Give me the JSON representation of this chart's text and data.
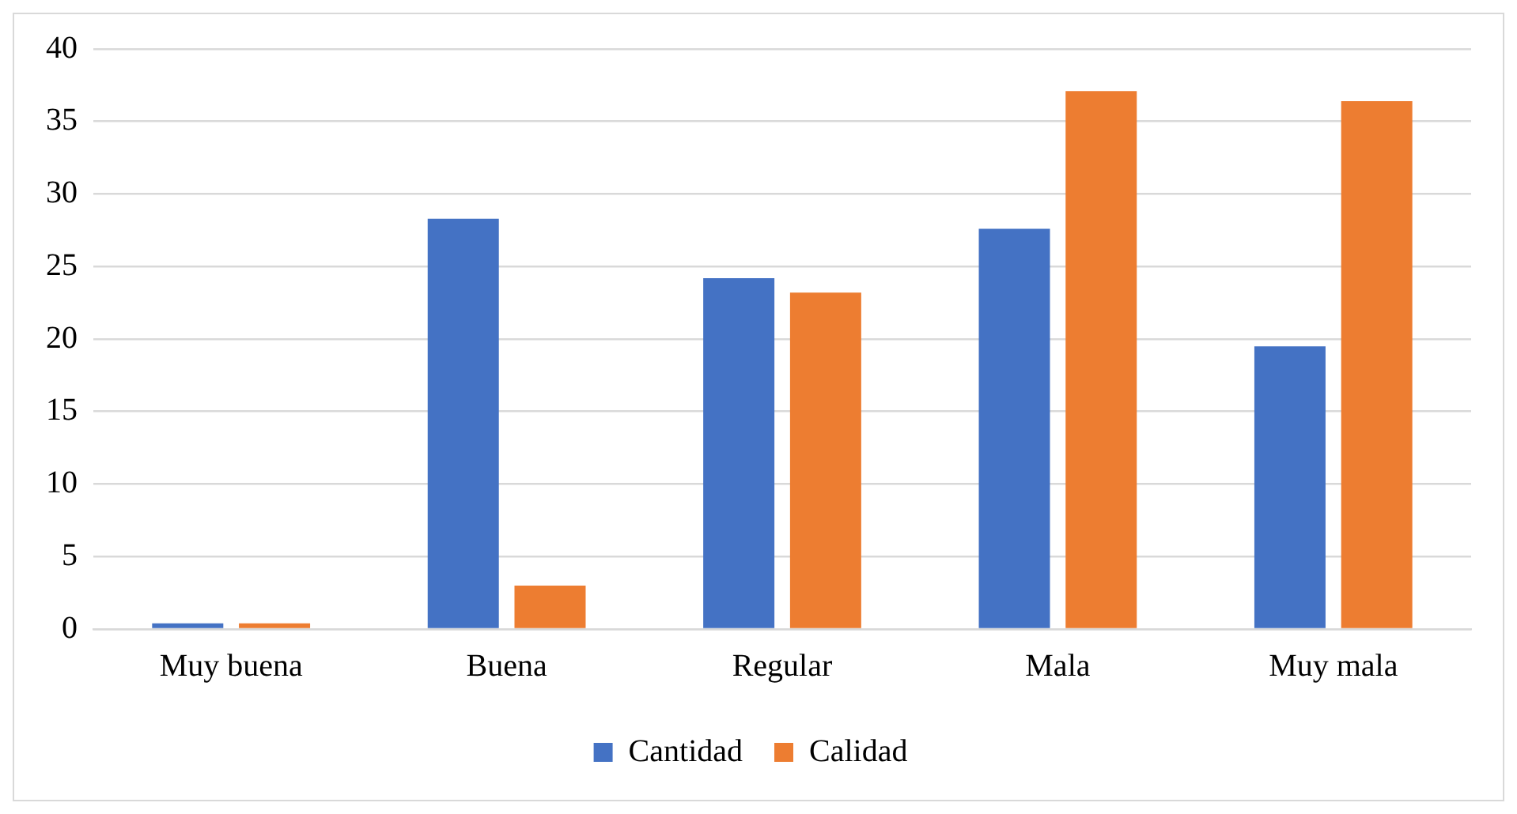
{
  "chart_data": {
    "type": "bar",
    "categories": [
      "Muy buena",
      "Buena",
      "Regular",
      "Mala",
      "Muy mala"
    ],
    "series": [
      {
        "name": "Cantidad",
        "color": "#4472c4",
        "values": [
          0.4,
          28.3,
          24.2,
          27.6,
          19.5
        ]
      },
      {
        "name": "Calidad",
        "color": "#ed7d31",
        "values": [
          0.4,
          3.0,
          23.2,
          37.1,
          36.4
        ]
      }
    ],
    "ylim": [
      0,
      40
    ],
    "yticks": [
      0,
      5,
      10,
      15,
      20,
      25,
      30,
      35,
      40
    ],
    "grid": "y",
    "legend": "bottom"
  }
}
